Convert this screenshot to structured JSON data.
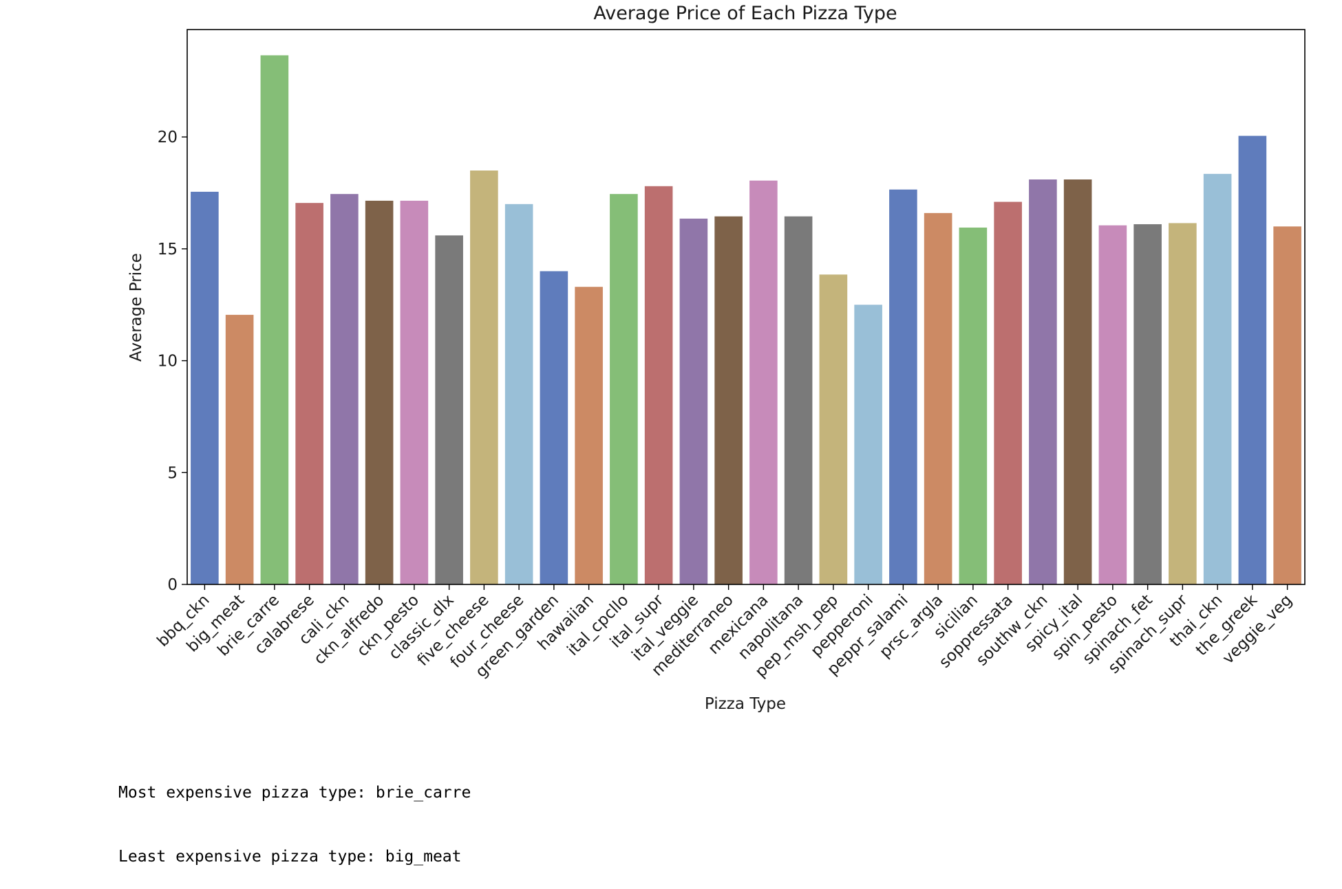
{
  "chart_data": {
    "type": "bar",
    "title": "Average Price of Each Pizza Type",
    "xlabel": "Pizza Type",
    "ylabel": "Average Price",
    "ylim": [
      0,
      24.8
    ],
    "yticks": [
      0,
      5,
      10,
      15,
      20
    ],
    "grid": false,
    "legend": "none",
    "categories": [
      "bbq_ckn",
      "big_meat",
      "brie_carre",
      "calabrese",
      "cali_ckn",
      "ckn_alfredo",
      "ckn_pesto",
      "classic_dlx",
      "five_cheese",
      "four_cheese",
      "green_garden",
      "hawaiian",
      "ital_cpcllo",
      "ital_supr",
      "ital_veggie",
      "mediterraneo",
      "mexicana",
      "napolitana",
      "pep_msh_pep",
      "pepperoni",
      "peppr_salami",
      "prsc_argla",
      "sicilian",
      "soppressata",
      "southw_ckn",
      "spicy_ital",
      "spin_pesto",
      "spinach_fet",
      "spinach_supr",
      "thai_ckn",
      "the_greek",
      "veggie_veg"
    ],
    "values": [
      17.55,
      12.05,
      23.65,
      17.05,
      17.45,
      17.15,
      17.15,
      15.6,
      18.5,
      17.0,
      14.0,
      13.3,
      17.45,
      17.8,
      16.35,
      16.45,
      18.05,
      16.45,
      13.85,
      12.5,
      17.65,
      16.6,
      15.95,
      17.1,
      18.1,
      18.1,
      16.05,
      16.1,
      16.15,
      18.35,
      20.05,
      16.0
    ],
    "colors": [
      "#5f7cbc",
      "#cc8a64",
      "#85be77",
      "#bc6f6f",
      "#9076a9",
      "#7e6249",
      "#c78bba",
      "#7a7a7a",
      "#c4b47b",
      "#99bfd7"
    ]
  },
  "output_lines": [
    "Most expensive pizza type: brie_carre",
    "Least expensive pizza type: big_meat"
  ]
}
